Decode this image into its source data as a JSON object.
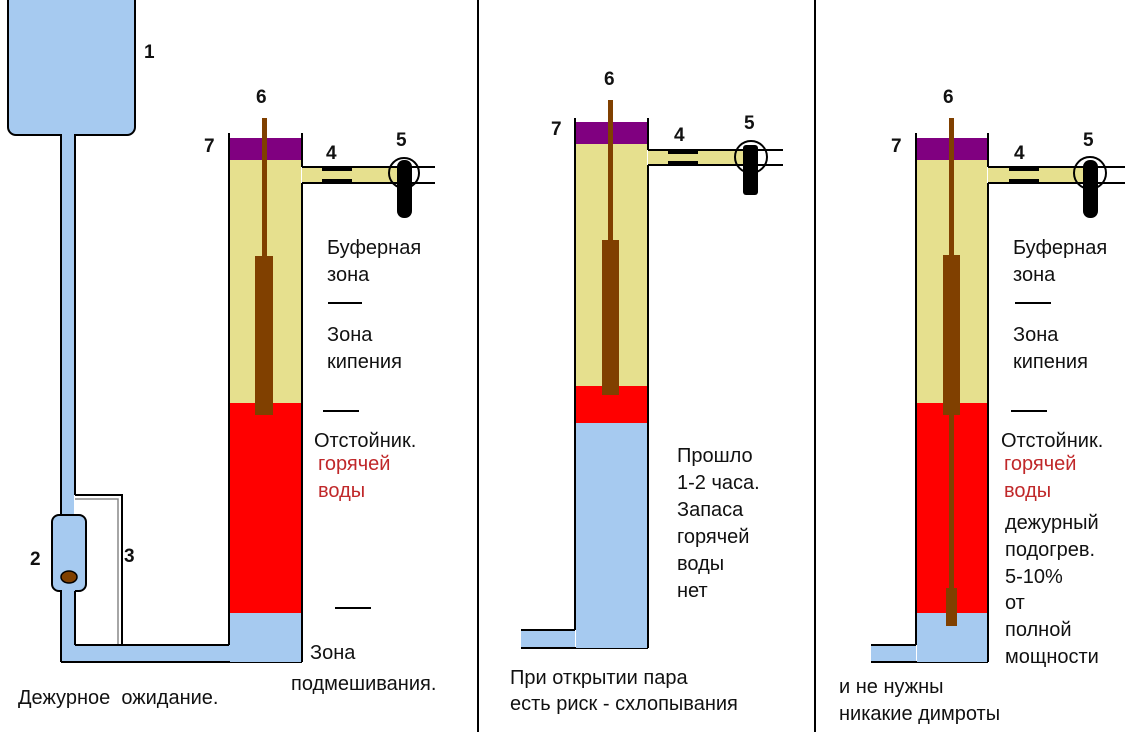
{
  "colors": {
    "water": "#a6caf0",
    "buffer": "#e6e08e",
    "hot": "#ff0000",
    "cap": "#800080",
    "heater": "#804000",
    "hot_text": "#c0282a"
  },
  "numbers": {
    "n1": "1",
    "n2": "2",
    "n3": "3",
    "n4": "4",
    "n5": "5",
    "n6": "6",
    "n7": "7"
  },
  "panel1": {
    "buffer": [
      "Буферная",
      "зона"
    ],
    "boiling": [
      "Зона",
      "кипения"
    ],
    "settler": "Отстойник.",
    "hot_water": [
      "горячей",
      "воды"
    ],
    "mixing": [
      "Зона",
      "подмешивания."
    ],
    "caption": "Дежурное  ожидание."
  },
  "panel2": {
    "note": [
      "Прошло",
      "1-2 часа.",
      "Запаса",
      "горячей",
      "воды",
      "нет"
    ],
    "caption": [
      "При открытии пара",
      "есть риск - схлопывания"
    ]
  },
  "panel3": {
    "buffer": [
      "Буферная",
      "зона"
    ],
    "boiling": [
      "Зона",
      "кипения"
    ],
    "settler": "Отстойник.",
    "hot_water": [
      "горячей",
      "воды"
    ],
    "standby": [
      "дежурный",
      "подогрев.",
      "5-10%",
      "от",
      "полной",
      "мощности"
    ],
    "caption": [
      "и не нужны",
      "никакие димроты"
    ]
  }
}
